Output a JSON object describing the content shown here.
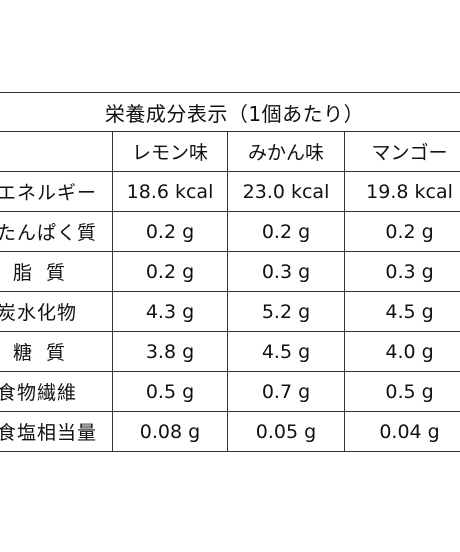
{
  "table": {
    "title": "栄養成分表示（1個あたり）",
    "columns": [
      "",
      "レモン味",
      "みかん味",
      "マンゴー"
    ],
    "rows": [
      {
        "label": "エネルギー",
        "values": [
          "18.6 kcal",
          "23.0 kcal",
          "19.8 kcal"
        ]
      },
      {
        "label": "たんぱく質",
        "values": [
          "0.2 g",
          "0.2 g",
          "0.2 g"
        ]
      },
      {
        "label": "脂質",
        "values": [
          "0.2 g",
          "0.3 g",
          "0.3 g"
        ]
      },
      {
        "label": "炭水化物",
        "values": [
          "4.3 g",
          "5.2 g",
          "4.5 g"
        ]
      },
      {
        "label": "糖質",
        "values": [
          "3.8 g",
          "4.5 g",
          "4.0 g"
        ]
      },
      {
        "label": "食物繊維",
        "values": [
          "0.5 g",
          "0.7 g",
          "0.5 g"
        ]
      },
      {
        "label": "食塩相当量",
        "values": [
          "0.08 g",
          "0.05 g",
          "0.04 g"
        ]
      }
    ]
  }
}
